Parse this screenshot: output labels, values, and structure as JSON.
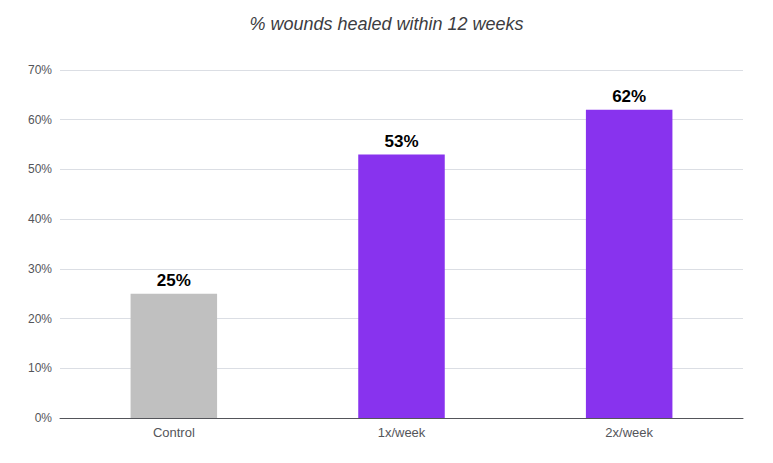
{
  "chart_data": {
    "type": "bar",
    "title": "% wounds healed within 12 weeks",
    "categories": [
      "Control",
      "1x/week",
      "2x/week"
    ],
    "values": [
      25,
      53,
      62
    ],
    "value_labels": [
      "25%",
      "53%",
      "62%"
    ],
    "data_labels": true,
    "colors": [
      "#c0c0c0",
      "#8833ee",
      "#8833ee"
    ],
    "ylim": [
      0,
      70
    ],
    "yticks": [
      {
        "value": 0,
        "label": "0%"
      },
      {
        "value": 10,
        "label": "10%"
      },
      {
        "value": 20,
        "label": "20%"
      },
      {
        "value": 30,
        "label": "30%"
      },
      {
        "value": 40,
        "label": "40%"
      },
      {
        "value": 50,
        "label": "50%"
      },
      {
        "value": 60,
        "label": "60%"
      },
      {
        "value": 70,
        "label": "70%"
      }
    ],
    "grid": true
  }
}
